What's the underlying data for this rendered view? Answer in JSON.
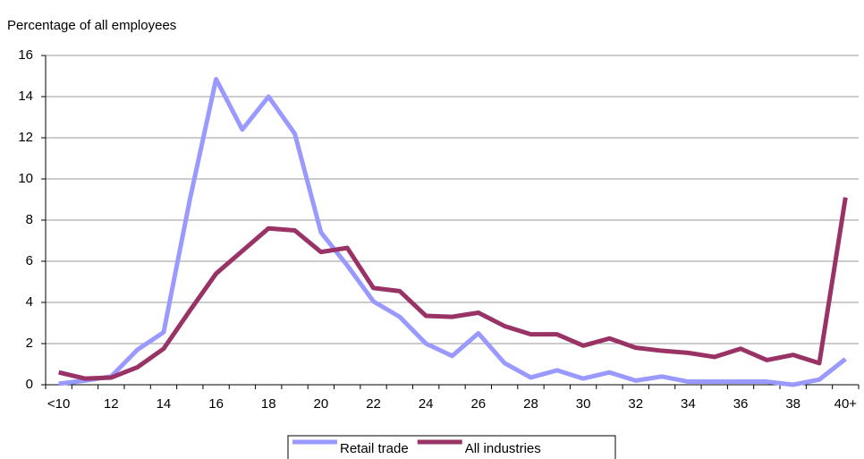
{
  "chart_data": {
    "type": "line",
    "y_axis_label": "Percentage of all employees",
    "categories": [
      "<10",
      null,
      "12",
      null,
      "14",
      null,
      "16",
      null,
      "18",
      null,
      "20",
      null,
      "22",
      null,
      "24",
      null,
      "26",
      null,
      "28",
      null,
      "30",
      null,
      "32",
      null,
      "34",
      null,
      "36",
      null,
      "38",
      null,
      "40+"
    ],
    "series": [
      {
        "name": "Retail trade",
        "color": "#9999ff",
        "values": [
          0.05,
          0.2,
          0.4,
          1.7,
          2.55,
          9.0,
          14.85,
          12.4,
          14.0,
          12.2,
          7.4,
          5.8,
          4.05,
          3.3,
          2.0,
          1.4,
          2.5,
          1.05,
          0.35,
          0.7,
          0.3,
          0.6,
          0.2,
          0.4,
          0.15,
          0.15,
          0.15,
          0.15,
          0.0,
          0.25,
          1.25
        ]
      },
      {
        "name": "All industries",
        "color": "#993366",
        "values": [
          0.6,
          0.3,
          0.35,
          0.85,
          1.75,
          3.6,
          5.4,
          6.5,
          7.6,
          7.5,
          6.45,
          6.65,
          4.7,
          4.55,
          3.35,
          3.3,
          3.5,
          2.85,
          2.45,
          2.45,
          1.9,
          2.25,
          1.8,
          1.65,
          1.55,
          1.35,
          1.75,
          1.2,
          1.45,
          1.05,
          9.1
        ]
      }
    ],
    "ylim": [
      0,
      16
    ],
    "yticks": [
      0,
      2,
      4,
      6,
      8,
      10,
      12,
      14,
      16
    ],
    "grid": true,
    "legend": "bottom"
  }
}
